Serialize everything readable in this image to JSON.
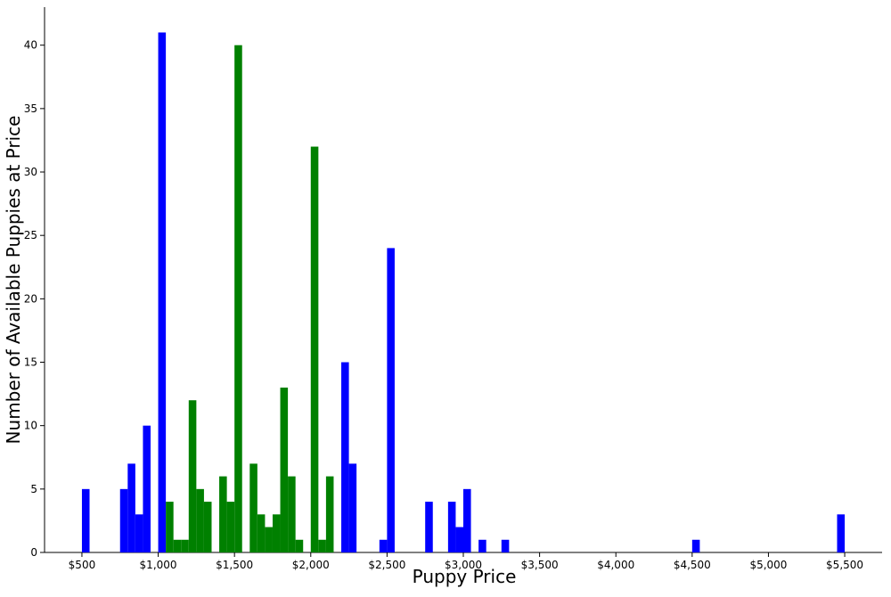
{
  "chart_data": {
    "type": "histogram",
    "xlabel": "Puppy Price",
    "ylabel": "Number of Available Puppies at Price",
    "bins": [
      500,
      550,
      600,
      650,
      700,
      750,
      800,
      850,
      900,
      950,
      1000,
      1050,
      1100,
      1150,
      1200,
      1250,
      1300,
      1350,
      1400,
      1450,
      1500,
      1550,
      1600,
      1650,
      1700,
      1750,
      1800,
      1850,
      1900,
      1950,
      2000,
      2050,
      2100,
      2150,
      2200,
      2250,
      2300,
      2350,
      2400,
      2450,
      2500,
      2550,
      2600,
      2650,
      2700,
      2750,
      2800,
      2850,
      2900,
      2950,
      3000,
      3050,
      3100,
      3150,
      3200,
      3250,
      3300,
      3350,
      3400,
      3450,
      3500,
      3550,
      3600,
      3650,
      3700,
      3750,
      3800,
      3850,
      3900,
      3950,
      4000,
      4050,
      4100,
      4150,
      4200,
      4250,
      4300,
      4350,
      4400,
      4450,
      4500,
      4550,
      4600,
      4650,
      4700,
      4750,
      4800,
      4850,
      4900,
      4950,
      5000,
      5050,
      5100,
      5150,
      5200,
      5250,
      5300,
      5350,
      5400,
      5450,
      5500
    ],
    "series": [
      {
        "color": "#0000ff",
        "values": [
          5,
          0,
          0,
          0,
          0,
          5,
          7,
          3,
          10,
          0,
          41,
          0,
          0,
          0,
          0,
          0,
          0,
          0,
          0,
          0,
          0,
          0,
          0,
          0,
          0,
          0,
          0,
          0,
          0,
          0,
          0,
          0,
          0,
          0,
          15,
          7,
          0,
          0,
          0,
          1,
          24,
          0,
          0,
          0,
          0,
          4,
          0,
          0,
          4,
          2,
          5,
          0,
          1,
          0,
          0,
          1,
          0,
          0,
          0,
          0,
          0,
          0,
          0,
          0,
          0,
          0,
          0,
          0,
          0,
          0,
          0,
          0,
          0,
          0,
          0,
          0,
          0,
          0,
          0,
          0,
          1,
          0,
          0,
          0,
          0,
          0,
          0,
          0,
          0,
          0,
          0,
          0,
          0,
          0,
          0,
          0,
          0,
          0,
          0,
          3
        ]
      },
      {
        "color": "#008000",
        "values": [
          0,
          0,
          0,
          0,
          0,
          0,
          0,
          0,
          0,
          0,
          0,
          4,
          1,
          1,
          12,
          5,
          4,
          0,
          6,
          4,
          40,
          0,
          7,
          3,
          2,
          3,
          13,
          6,
          1,
          0,
          32,
          1,
          6,
          0,
          0,
          0,
          0,
          0,
          0,
          0,
          0,
          0,
          0,
          0,
          0,
          0,
          0,
          0,
          0,
          0,
          0,
          0,
          0,
          0,
          0,
          0,
          0,
          0,
          0,
          0,
          0,
          0,
          0,
          0,
          0,
          0,
          0,
          0,
          0,
          0,
          0,
          0,
          0,
          0,
          0,
          0,
          0,
          0,
          0,
          0,
          0,
          0,
          0,
          0,
          0,
          0,
          0,
          0,
          0,
          0,
          0,
          0,
          0,
          0,
          0,
          0,
          0,
          0,
          0,
          0
        ]
      }
    ],
    "xlim": [
      255,
      5745
    ],
    "ylim": [
      0,
      43
    ],
    "xticks": [
      {
        "value": 500,
        "label": "$500"
      },
      {
        "value": 1000,
        "label": "$1,000"
      },
      {
        "value": 1500,
        "label": "$1,500"
      },
      {
        "value": 2000,
        "label": "$2,000"
      },
      {
        "value": 2500,
        "label": "$2,500"
      },
      {
        "value": 3000,
        "label": "$3,000"
      },
      {
        "value": 3500,
        "label": "$3,500"
      },
      {
        "value": 4000,
        "label": "$4,000"
      },
      {
        "value": 4500,
        "label": "$4,500"
      },
      {
        "value": 5000,
        "label": "$5,000"
      },
      {
        "value": 5500,
        "label": "$5,500"
      }
    ],
    "yticks": [
      0,
      5,
      10,
      15,
      20,
      25,
      30,
      35,
      40
    ]
  }
}
